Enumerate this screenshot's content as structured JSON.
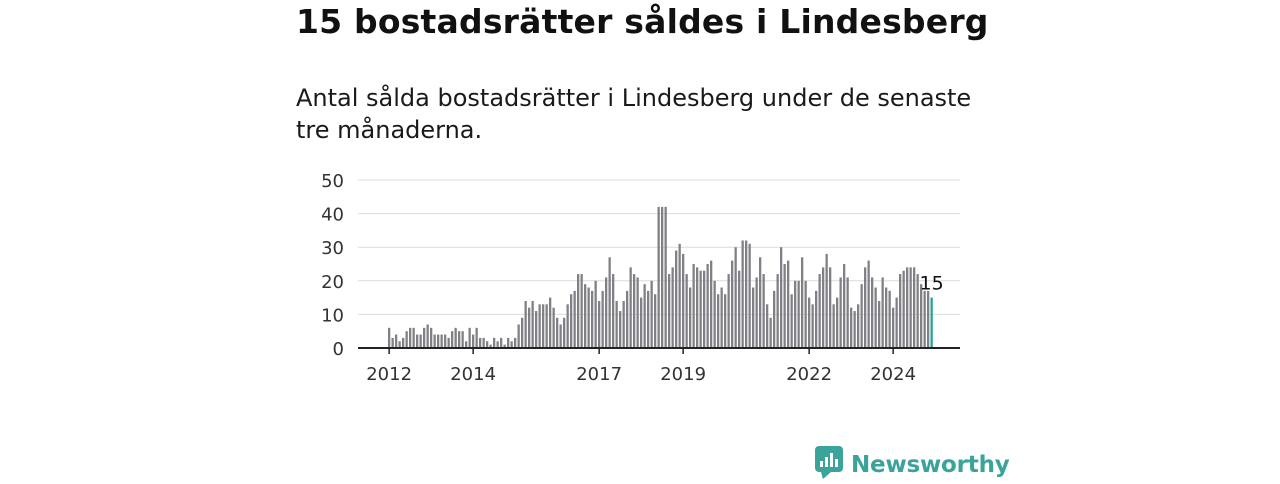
{
  "header": {
    "title": "15 bostadsrätter såldes i Lindesberg",
    "subtitle": "Antal sålda bostadsrätter i Lindesberg under de senaste tre månaderna."
  },
  "brand": {
    "name": "Newsworthy",
    "icon": "newsworthy-logo-icon",
    "color": "#3aa39a"
  },
  "colors": {
    "bar": "#808087",
    "highlight": "#2aa198",
    "grid": "#dcdcdc",
    "axis": "#222222"
  },
  "chart_data": {
    "type": "bar",
    "title": "",
    "xlabel": "",
    "ylabel": "",
    "ylim": [
      0,
      50
    ],
    "yticks": [
      0,
      10,
      20,
      30,
      40,
      50
    ],
    "x_tick_labels": [
      "2012",
      "2014",
      "2017",
      "2019",
      "2022",
      "2024"
    ],
    "grid": true,
    "x_start": "2012-01",
    "interval": "month",
    "highlight_last": true,
    "last_label": "15",
    "values": [
      6,
      3,
      4,
      2,
      3,
      5,
      6,
      6,
      4,
      4,
      6,
      7,
      6,
      4,
      4,
      4,
      4,
      3,
      5,
      6,
      5,
      5,
      2,
      6,
      4,
      6,
      3,
      3,
      2,
      1,
      3,
      2,
      3,
      1,
      3,
      2,
      3,
      7,
      9,
      14,
      12,
      14,
      11,
      13,
      13,
      13,
      15,
      12,
      9,
      7,
      9,
      13,
      16,
      17,
      22,
      22,
      19,
      18,
      17,
      20,
      14,
      17,
      21,
      27,
      22,
      14,
      11,
      14,
      17,
      24,
      22,
      21,
      15,
      19,
      17,
      20,
      16,
      42,
      42,
      42,
      22,
      24,
      29,
      31,
      28,
      22,
      18,
      25,
      24,
      23,
      23,
      25,
      26,
      20,
      16,
      18,
      16,
      22,
      26,
      30,
      23,
      32,
      32,
      31,
      18,
      21,
      27,
      22,
      13,
      9,
      17,
      22,
      30,
      25,
      26,
      16,
      20,
      20,
      27,
      20,
      15,
      13,
      17,
      22,
      24,
      28,
      24,
      13,
      15,
      21,
      25,
      21,
      12,
      11,
      13,
      19,
      24,
      26,
      21,
      18,
      14,
      21,
      18,
      17,
      12,
      15,
      22,
      23,
      24,
      24,
      24,
      22,
      19,
      17,
      17,
      15
    ]
  }
}
